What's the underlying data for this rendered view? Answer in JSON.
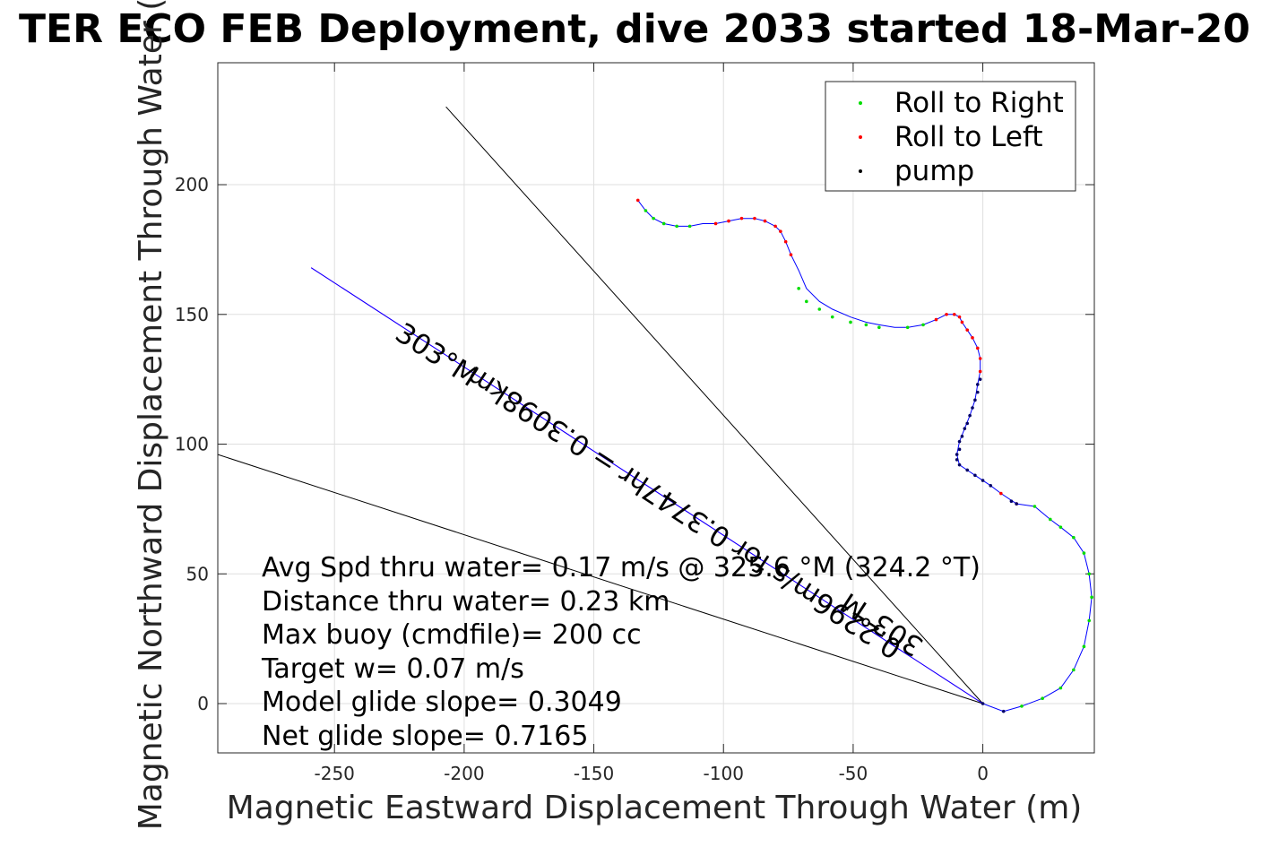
{
  "chart_data": {
    "type": "line",
    "title": "TER ECO FEB Deployment, dive 2033 started 18-Mar-20",
    "xlabel": "Magnetic Eastward Displacement Through Water (m)",
    "ylabel": "Magnetic Northward Displacement Through Water (",
    "xlim": [
      -295,
      43
    ],
    "ylim": [
      -19,
      247
    ],
    "xticks": [
      -250,
      -200,
      -150,
      -100,
      -50,
      0
    ],
    "yticks": [
      0,
      50,
      100,
      150,
      200
    ],
    "grid": true,
    "legend_position": "top-right",
    "legend": [
      {
        "name": "Roll to Right",
        "color": "#00dd00"
      },
      {
        "name": "Roll to Left",
        "color": "#ff0000"
      },
      {
        "name": "pump",
        "color": "#000000"
      }
    ],
    "track_color": "#0000ff",
    "track": {
      "x": [
        0,
        8,
        15,
        23,
        30,
        35,
        39,
        41,
        42,
        41,
        39,
        35,
        30,
        26,
        20,
        13,
        7,
        3,
        0,
        -3,
        -6,
        -9,
        -10,
        -9,
        -7,
        -5,
        -3,
        -2,
        -1,
        -1,
        -2,
        -4,
        -6,
        -8,
        -9,
        -11,
        -14,
        -18,
        -23,
        -29,
        -34,
        -40,
        -45,
        -51,
        -58,
        -63,
        -68,
        -71,
        -74,
        -76,
        -78,
        -80,
        -84,
        -88,
        -93,
        -98,
        -103,
        -108,
        -113,
        -118,
        -123,
        -127,
        -130,
        -133
      ],
      "y": [
        0,
        -3,
        -1,
        2,
        6,
        13,
        22,
        32,
        41,
        50,
        58,
        64,
        68,
        71,
        76,
        77,
        81,
        84,
        86,
        88,
        90,
        92,
        96,
        101,
        106,
        111,
        117,
        123,
        128,
        133,
        137,
        141,
        144,
        147,
        149,
        150,
        150,
        148,
        146,
        145,
        145,
        146,
        147,
        149,
        152,
        155,
        160,
        167,
        173,
        178,
        182,
        184,
        186,
        187,
        187,
        186,
        185,
        185,
        184,
        184,
        185,
        187,
        190,
        194
      ]
    },
    "points": {
      "roll_right": {
        "x": [
          30,
          35,
          39,
          41,
          42,
          41,
          39,
          35,
          30,
          26,
          20,
          23,
          15,
          -23,
          -29,
          -40,
          -45,
          -51,
          -58,
          -63,
          -68,
          -71,
          -113,
          -118,
          -123,
          -127,
          -130
        ],
        "y": [
          6,
          13,
          22,
          32,
          41,
          50,
          58,
          64,
          68,
          71,
          76,
          2,
          -1,
          146,
          145,
          145,
          146,
          147,
          149,
          152,
          155,
          160,
          184,
          184,
          185,
          187,
          190
        ]
      },
      "roll_left": {
        "x": [
          13,
          7,
          -1,
          -1,
          -2,
          -4,
          -6,
          -8,
          -9,
          -11,
          -14,
          -18,
          -74,
          -76,
          -78,
          -80,
          -84,
          -88,
          -93,
          -98,
          -103,
          -133
        ],
        "y": [
          77,
          81,
          128,
          133,
          137,
          141,
          144,
          147,
          149,
          150,
          150,
          148,
          173,
          178,
          182,
          184,
          186,
          187,
          187,
          186,
          185,
          194
        ]
      },
      "pump": {
        "x": [
          0,
          3,
          0,
          -3,
          -6,
          -9,
          -10,
          -10,
          -9,
          -9,
          -8,
          -7,
          -6,
          -5,
          -4,
          -3,
          -2,
          -2,
          -1,
          8,
          13,
          11
        ],
        "y": [
          0,
          84,
          86,
          88,
          90,
          92,
          94,
          96,
          98,
          101,
          103,
          106,
          108,
          111,
          114,
          117,
          120,
          123,
          125,
          -3,
          77,
          78
        ]
      }
    },
    "lines": [
      {
        "name": "boundary-upper",
        "x": [
          0,
          -207
        ],
        "y": [
          0,
          230
        ],
        "color": "#000000"
      },
      {
        "name": "boundary-lower",
        "x": [
          0,
          -295
        ],
        "y": [
          0,
          96
        ],
        "color": "#000000"
      },
      {
        "name": "heading-model",
        "x": [
          0,
          -259
        ],
        "y": [
          0,
          168
        ],
        "color": "#ff00ff"
      },
      {
        "name": "heading-net",
        "x": [
          0,
          -259
        ],
        "y": [
          0,
          168
        ],
        "color": "#0000ff"
      }
    ],
    "annotations": [
      {
        "text": "303°M",
        "rotation": 213
      },
      {
        "text": "0.3098km",
        "rotation": 213
      },
      {
        "text": "0.2296m/s for 0.3747hr = 0.3098km",
        "rotation": 213
      },
      {
        "text": "303°M",
        "rotation": 213
      }
    ],
    "stats": [
      "Avg Spd thru water=  0.17 m/s @ 325.6 °M (324.2 °T)",
      "Distance thru water=  0.23 km",
      "Max buoy (cmdfile)= 200 cc",
      "Target w= 0.07 m/s",
      "Model glide slope= 0.3049",
      "Net glide slope= 0.7165"
    ]
  }
}
